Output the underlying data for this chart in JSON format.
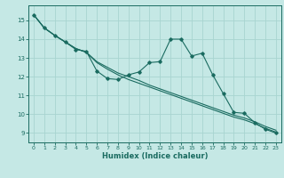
{
  "title": "",
  "xlabel": "Humidex (Indice chaleur)",
  "ylabel": "",
  "bg_color": "#c5e8e5",
  "grid_color": "#a8d4d0",
  "line_color": "#1a6b60",
  "x_data": [
    0,
    1,
    2,
    3,
    4,
    5,
    6,
    7,
    8,
    9,
    10,
    11,
    12,
    13,
    14,
    15,
    16,
    17,
    18,
    19,
    20,
    21,
    22,
    23
  ],
  "series1": [
    15.3,
    14.6,
    14.2,
    13.85,
    13.45,
    13.35,
    12.3,
    11.9,
    11.85,
    12.1,
    12.25,
    12.75,
    12.8,
    14.0,
    14.0,
    13.1,
    13.25,
    12.1,
    11.1,
    10.1,
    10.05,
    9.55,
    9.2,
    9.0
  ],
  "series2": [
    15.3,
    14.6,
    14.2,
    13.85,
    13.5,
    13.3,
    12.75,
    12.4,
    12.1,
    11.85,
    11.65,
    11.45,
    11.25,
    11.05,
    10.85,
    10.65,
    10.45,
    10.25,
    10.05,
    9.85,
    9.7,
    9.5,
    9.25,
    9.05
  ],
  "series3": [
    15.3,
    14.6,
    14.2,
    13.85,
    13.5,
    13.3,
    12.8,
    12.5,
    12.2,
    12.0,
    11.8,
    11.55,
    11.35,
    11.15,
    10.95,
    10.75,
    10.55,
    10.35,
    10.15,
    9.95,
    9.8,
    9.6,
    9.35,
    9.15
  ],
  "ylim": [
    8.5,
    15.8
  ],
  "xlim": [
    -0.5,
    23.5
  ],
  "yticks": [
    9,
    10,
    11,
    12,
    13,
    14,
    15
  ],
  "xticks": [
    0,
    1,
    2,
    3,
    4,
    5,
    6,
    7,
    8,
    9,
    10,
    11,
    12,
    13,
    14,
    15,
    16,
    17,
    18,
    19,
    20,
    21,
    22,
    23
  ]
}
